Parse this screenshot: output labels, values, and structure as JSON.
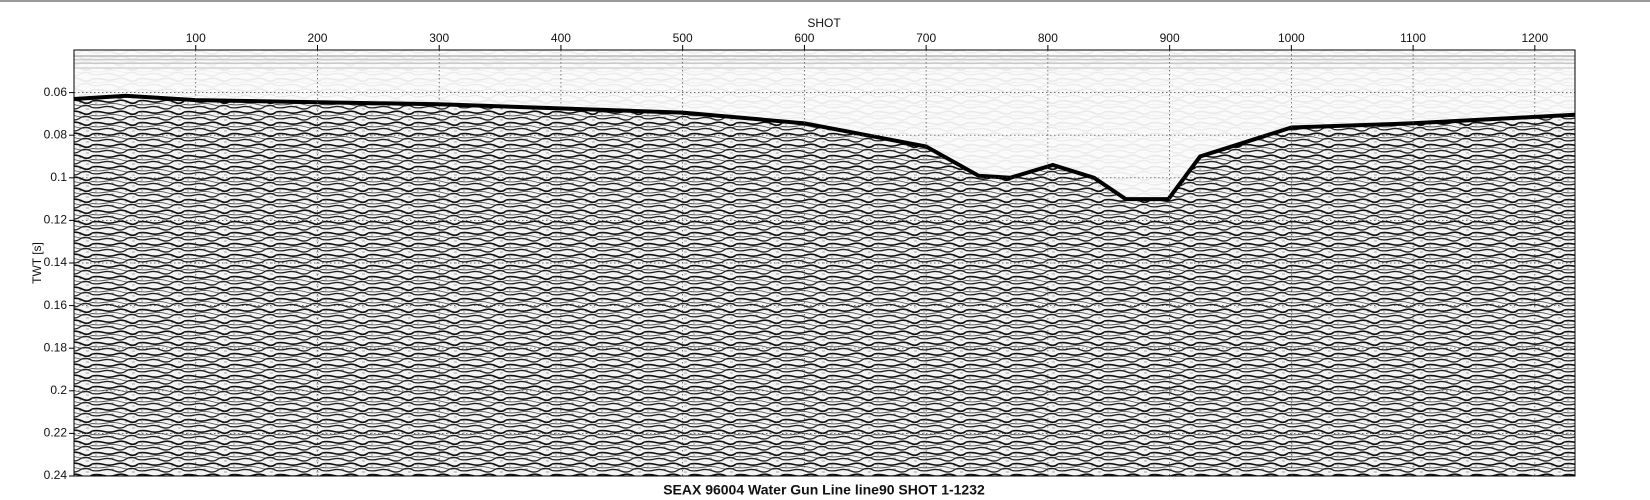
{
  "chart_data": {
    "type": "seismic",
    "title": "SEAX 96004 Water Gun Line line90 SHOT 1-1232",
    "x_label": "SHOT",
    "y_label": "TWT [s]",
    "xlim": [
      0,
      1233
    ],
    "ylim": [
      0.04,
      0.24
    ],
    "y_inverted": true,
    "x_axis_position": "top",
    "grid": true,
    "xticks": [
      100,
      200,
      300,
      400,
      500,
      600,
      700,
      800,
      900,
      1000,
      1100,
      1200
    ],
    "yticks": [
      0.06,
      0.08,
      0.1,
      0.12,
      0.14,
      0.16,
      0.18,
      0.2,
      0.22,
      0.24
    ],
    "color": "#000000",
    "x": [
      0,
      43,
      100,
      300,
      500,
      600,
      700,
      743,
      769,
      804,
      838,
      864,
      899,
      925,
      1000,
      1100,
      1233
    ],
    "values": [
      0.063,
      0.0615,
      0.0635,
      0.0655,
      0.0694,
      0.0744,
      0.0853,
      0.099,
      0.1,
      0.094,
      0.1,
      0.11,
      0.11,
      0.09,
      0.0764,
      0.0744,
      0.0704
    ]
  }
}
